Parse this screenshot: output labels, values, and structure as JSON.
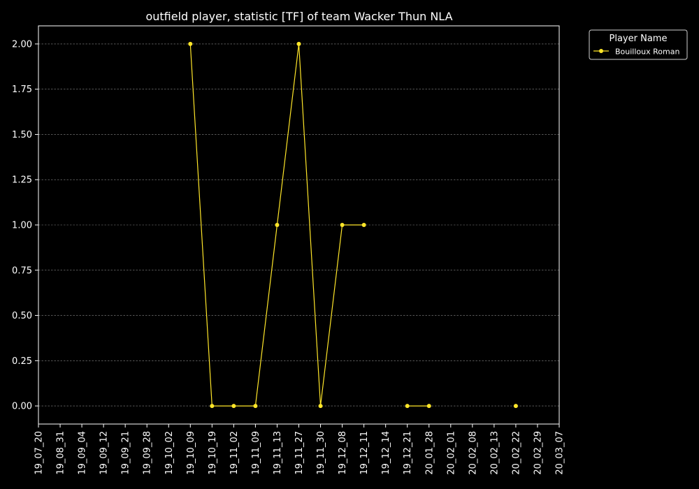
{
  "chart_data": {
    "type": "line",
    "title": "outfield player, statistic [TF] of team Wacker Thun NLA",
    "xlabel": "",
    "ylabel": "",
    "ylim": [
      -0.1,
      2.1
    ],
    "yticks": [
      "0.00",
      "0.25",
      "0.50",
      "0.75",
      "1.00",
      "1.25",
      "1.50",
      "1.75",
      "2.00"
    ],
    "x_categories": [
      "19_07_20",
      "19_08_31",
      "19_09_04",
      "19_09_12",
      "19_09_21",
      "19_09_28",
      "19_10_02",
      "19_10_09",
      "19_10_19",
      "19_11_02",
      "19_11_09",
      "19_11_13",
      "19_11_27",
      "19_11_30",
      "19_12_08",
      "19_12_11",
      "19_12_14",
      "19_12_21",
      "20_01_28",
      "20_02_01",
      "20_02_08",
      "20_02_13",
      "20_02_22",
      "20_02_29",
      "20_03_07"
    ],
    "grid": "horizontal",
    "legend": {
      "title": "Player Name",
      "placement": "top-right, outside plot"
    },
    "series": [
      {
        "name": "Bouilloux Roman",
        "color": "#ffe629",
        "points": [
          {
            "x": "19_10_09",
            "y": 2
          },
          {
            "x": "19_10_19",
            "y": 0
          },
          {
            "x": "19_11_02",
            "y": 0
          },
          {
            "x": "19_11_09",
            "y": 0
          },
          {
            "x": "19_11_13",
            "y": 1
          },
          {
            "x": "19_11_27",
            "y": 2
          },
          {
            "x": "19_11_30",
            "y": 0
          },
          {
            "x": "19_12_08",
            "y": 1
          },
          {
            "x": "19_12_11",
            "y": 1
          },
          {
            "x": "19_12_14",
            "y": null
          },
          {
            "x": "19_12_21",
            "y": 0
          },
          {
            "x": "20_01_28",
            "y": 0
          },
          {
            "x": "20_02_01",
            "y": null
          },
          {
            "x": "20_02_08",
            "y": null
          },
          {
            "x": "20_02_13",
            "y": null
          },
          {
            "x": "20_02_22",
            "y": 0
          }
        ]
      }
    ]
  }
}
